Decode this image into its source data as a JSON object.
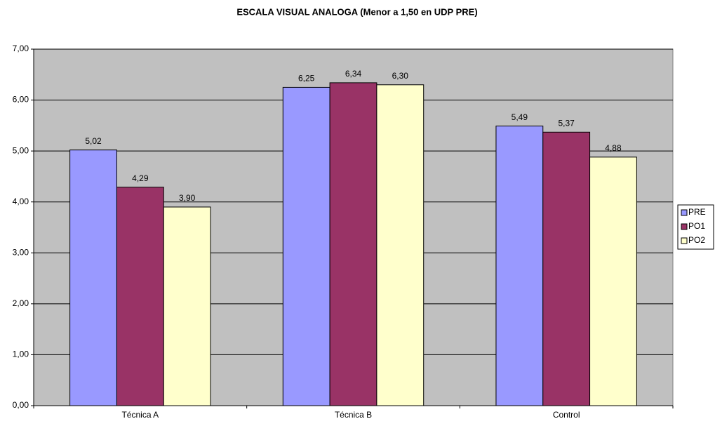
{
  "chart_data": {
    "type": "bar",
    "title": "ESCALA VISUAL ANALOGA (Menor a 1,50 en UDP PRE)",
    "categories": [
      "Técnica A",
      "Técnica B",
      "Control"
    ],
    "series": [
      {
        "name": "PRE",
        "color": "#9999ff",
        "values": [
          5.02,
          6.25,
          5.49
        ],
        "value_labels": [
          "5,02",
          "6,25",
          "5,49"
        ]
      },
      {
        "name": "PO1",
        "color": "#993366",
        "values": [
          4.29,
          6.34,
          5.37
        ],
        "value_labels": [
          "4,29",
          "6,34",
          "5,37"
        ]
      },
      {
        "name": "PO2",
        "color": "#ffffcc",
        "values": [
          3.9,
          6.3,
          4.88
        ],
        "value_labels": [
          "3,90",
          "6,30",
          "4,88"
        ]
      }
    ],
    "ylim": [
      0,
      7
    ],
    "yticks": [
      {
        "value": 0,
        "label": "0,00"
      },
      {
        "value": 1,
        "label": "1,00"
      },
      {
        "value": 2,
        "label": "2,00"
      },
      {
        "value": 3,
        "label": "3,00"
      },
      {
        "value": 4,
        "label": "4,00"
      },
      {
        "value": 5,
        "label": "5,00"
      },
      {
        "value": 6,
        "label": "6,00"
      },
      {
        "value": 7,
        "label": "7,00"
      }
    ],
    "grid": true,
    "legend": "right",
    "plot_background": "#c0c0c0"
  }
}
